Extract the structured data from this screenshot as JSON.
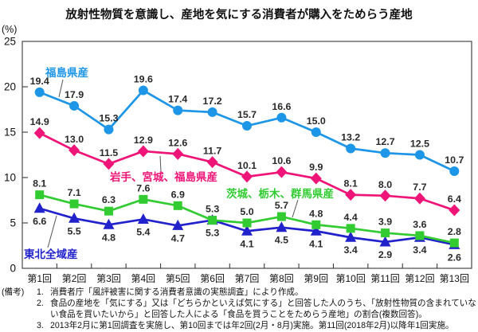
{
  "title": "放射性物質を意識し、産地を気にする消費者が購入をためらう産地",
  "chart_data": {
    "type": "line",
    "unit_label": "(%)",
    "ylim": [
      0,
      25
    ],
    "yticks": [
      0,
      5,
      10,
      15,
      20,
      25
    ],
    "grid": false,
    "legend_position": "inline-annotations",
    "categories": [
      "第1回",
      "第2回",
      "第3回",
      "第4回",
      "第5回",
      "第6回",
      "第7回",
      "第8回",
      "第9回",
      "第10回",
      "第11回",
      "第12回",
      "第13回"
    ],
    "series": [
      {
        "name": "福島県産",
        "color": "#1E96E8",
        "marker": "circle",
        "label_side": "above",
        "values": [
          19.4,
          17.9,
          15.3,
          19.6,
          17.4,
          17.2,
          15.7,
          16.6,
          15.0,
          13.2,
          12.7,
          12.5,
          10.7
        ]
      },
      {
        "name": "岩手、宮城、福島県産",
        "color": "#EE1478",
        "marker": "diamond",
        "label_side": "above",
        "values": [
          14.9,
          13.0,
          11.5,
          12.9,
          12.6,
          11.7,
          10.1,
          10.6,
          9.9,
          8.1,
          8.0,
          7.7,
          6.4
        ]
      },
      {
        "name": "茨城、栃木、群馬県産",
        "color": "#32CC32",
        "marker": "square",
        "label_side": "above",
        "values": [
          8.1,
          7.1,
          6.3,
          7.6,
          6.9,
          5.3,
          5.0,
          5.7,
          4.8,
          4.4,
          3.9,
          3.6,
          2.8
        ]
      },
      {
        "name": "東北全域産",
        "color": "#2222CC",
        "marker": "triangle",
        "label_side": "below",
        "values": [
          6.6,
          5.5,
          4.8,
          5.4,
          4.7,
          5.3,
          4.1,
          4.5,
          4.1,
          3.4,
          2.9,
          3.4,
          2.6
        ]
      }
    ]
  },
  "notes": {
    "label": "(備考)",
    "items": [
      {
        "num": "1.",
        "text": "消費者庁「風評被害に関する消費者意識の実態調査」により作成。"
      },
      {
        "num": "2.",
        "text": "食品の産地を「気にする」又は「どちらかといえば気にする」と回答した人のうち、「放射性物質の含まれていない食品を買いたいから」と回答した人による「食品を買うことをためらう産地」の割合(複数回答)。"
      },
      {
        "num": "3.",
        "text": "2013年2月に第1回調査を実施し、第10回までは年2回(2月・8月)実施。第11回(2018年2月)以降年1回実施。"
      }
    ]
  }
}
